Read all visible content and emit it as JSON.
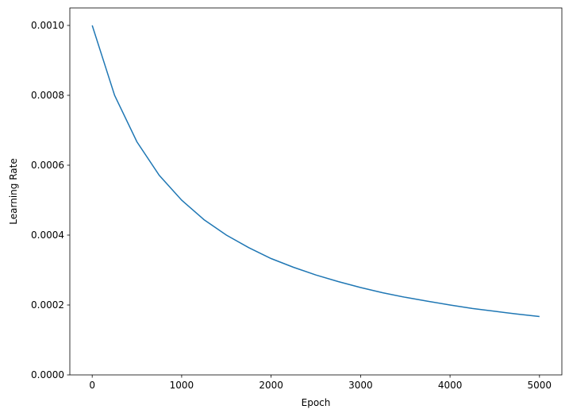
{
  "chart_data": {
    "type": "line",
    "title": "",
    "xlabel": "Epoch",
    "ylabel": "Learning Rate",
    "xlim": [
      -250,
      5250
    ],
    "ylim": [
      0,
      0.00105
    ],
    "grid": false,
    "xticks": [
      "0",
      "1000",
      "2000",
      "3000",
      "4000",
      "5000"
    ],
    "xtick_values": [
      0,
      1000,
      2000,
      3000,
      4000,
      5000
    ],
    "yticks": [
      "0.0000",
      "0.0002",
      "0.0004",
      "0.0006",
      "0.0008",
      "0.0010"
    ],
    "ytick_values": [
      0,
      0.0002,
      0.0004,
      0.0006,
      0.0008,
      0.001
    ],
    "series": [
      {
        "color": "#1f77b4",
        "x": [
          0,
          250,
          500,
          750,
          1000,
          1250,
          1500,
          1750,
          2000,
          2250,
          2500,
          2750,
          3000,
          3250,
          3500,
          3750,
          4000,
          4250,
          4500,
          4750,
          5000
        ],
        "y": [
          0.001,
          0.0008,
          0.000667,
          0.000571,
          0.0005,
          0.000444,
          0.0004,
          0.000364,
          0.000333,
          0.000308,
          0.000286,
          0.000267,
          0.00025,
          0.000235,
          0.000222,
          0.000211,
          0.0002,
          0.00019,
          0.000182,
          0.000174,
          0.000167
        ]
      }
    ]
  }
}
